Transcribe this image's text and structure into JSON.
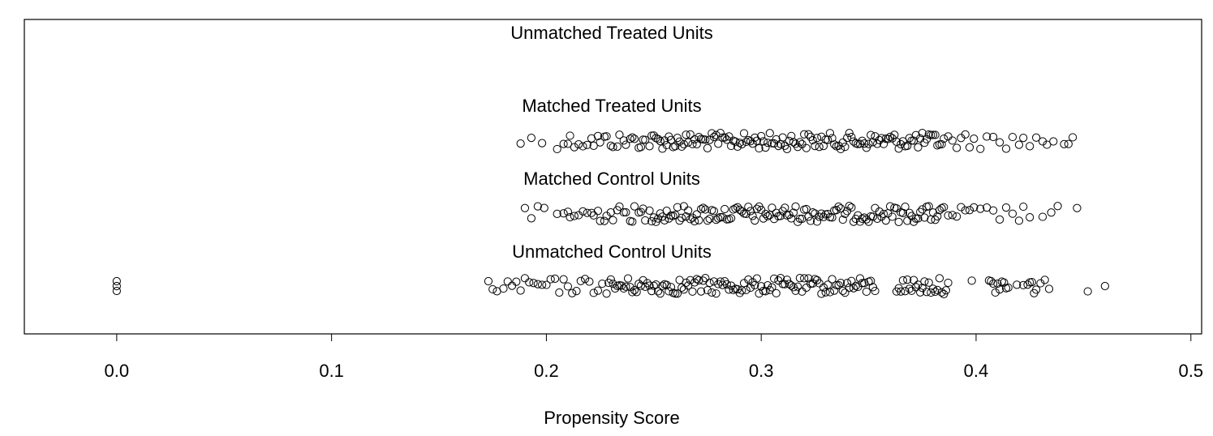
{
  "chart_data": {
    "type": "scatter",
    "title": "",
    "xlabel": "Propensity Score",
    "ylabel": "",
    "xlim": [
      -0.043,
      0.505
    ],
    "x_ticks": [
      0.0,
      0.1,
      0.2,
      0.3,
      0.4,
      0.5
    ],
    "x_tick_labels": [
      "0.0",
      "0.1",
      "0.2",
      "0.3",
      "0.4",
      "0.5"
    ],
    "grid": false,
    "legend": "none",
    "marker": "open-circle",
    "marker_color": "#000000",
    "groups": [
      {
        "name": "Unmatched Treated Units",
        "x": []
      },
      {
        "name": "Matched Treated Units",
        "x": [
          0.188,
          0.193,
          0.198,
          0.205,
          0.208,
          0.21,
          0.211,
          0.213,
          0.215,
          0.217,
          0.219,
          0.221,
          0.222,
          0.224,
          0.225,
          0.227,
          0.228,
          0.23,
          0.231,
          0.233,
          0.234,
          0.236,
          0.237,
          0.239,
          0.24,
          0.241,
          0.243,
          0.244,
          0.245,
          0.246,
          0.248,
          0.249,
          0.25,
          0.251,
          0.252,
          0.253,
          0.254,
          0.255,
          0.256,
          0.257,
          0.258,
          0.259,
          0.26,
          0.261,
          0.262,
          0.263,
          0.264,
          0.265,
          0.266,
          0.267,
          0.268,
          0.269,
          0.27,
          0.271,
          0.272,
          0.273,
          0.274,
          0.275,
          0.276,
          0.277,
          0.278,
          0.279,
          0.28,
          0.281,
          0.282,
          0.283,
          0.284,
          0.285,
          0.286,
          0.287,
          0.288,
          0.289,
          0.29,
          0.291,
          0.292,
          0.293,
          0.294,
          0.295,
          0.296,
          0.297,
          0.298,
          0.299,
          0.3,
          0.301,
          0.302,
          0.303,
          0.304,
          0.305,
          0.306,
          0.307,
          0.308,
          0.309,
          0.31,
          0.311,
          0.312,
          0.313,
          0.314,
          0.315,
          0.316,
          0.317,
          0.318,
          0.319,
          0.32,
          0.321,
          0.322,
          0.323,
          0.324,
          0.325,
          0.326,
          0.327,
          0.328,
          0.329,
          0.33,
          0.331,
          0.332,
          0.333,
          0.334,
          0.335,
          0.336,
          0.337,
          0.338,
          0.339,
          0.34,
          0.341,
          0.342,
          0.343,
          0.344,
          0.345,
          0.346,
          0.347,
          0.348,
          0.349,
          0.35,
          0.351,
          0.352,
          0.353,
          0.354,
          0.355,
          0.356,
          0.357,
          0.358,
          0.359,
          0.36,
          0.361,
          0.362,
          0.363,
          0.364,
          0.365,
          0.366,
          0.367,
          0.368,
          0.369,
          0.37,
          0.371,
          0.372,
          0.373,
          0.374,
          0.375,
          0.376,
          0.377,
          0.378,
          0.379,
          0.38,
          0.381,
          0.382,
          0.383,
          0.384,
          0.385,
          0.387,
          0.389,
          0.391,
          0.393,
          0.395,
          0.397,
          0.399,
          0.402,
          0.405,
          0.408,
          0.411,
          0.414,
          0.417,
          0.42,
          0.422,
          0.425,
          0.428,
          0.431,
          0.433,
          0.436,
          0.441,
          0.443,
          0.445
        ]
      },
      {
        "name": "Matched Control Units",
        "x": [
          0.19,
          0.193,
          0.196,
          0.199,
          0.205,
          0.208,
          0.21,
          0.211,
          0.213,
          0.215,
          0.217,
          0.219,
          0.221,
          0.222,
          0.224,
          0.225,
          0.227,
          0.228,
          0.23,
          0.231,
          0.233,
          0.234,
          0.236,
          0.237,
          0.239,
          0.24,
          0.241,
          0.243,
          0.244,
          0.245,
          0.246,
          0.248,
          0.249,
          0.25,
          0.251,
          0.252,
          0.253,
          0.254,
          0.255,
          0.256,
          0.257,
          0.258,
          0.259,
          0.26,
          0.261,
          0.262,
          0.263,
          0.264,
          0.265,
          0.266,
          0.267,
          0.268,
          0.269,
          0.27,
          0.271,
          0.272,
          0.273,
          0.274,
          0.275,
          0.276,
          0.277,
          0.278,
          0.279,
          0.28,
          0.281,
          0.282,
          0.283,
          0.284,
          0.285,
          0.286,
          0.287,
          0.288,
          0.289,
          0.29,
          0.291,
          0.292,
          0.293,
          0.294,
          0.295,
          0.296,
          0.297,
          0.298,
          0.299,
          0.3,
          0.301,
          0.302,
          0.303,
          0.304,
          0.305,
          0.306,
          0.307,
          0.308,
          0.309,
          0.31,
          0.311,
          0.312,
          0.313,
          0.314,
          0.315,
          0.316,
          0.317,
          0.318,
          0.319,
          0.32,
          0.321,
          0.322,
          0.323,
          0.324,
          0.325,
          0.326,
          0.327,
          0.328,
          0.329,
          0.33,
          0.331,
          0.332,
          0.333,
          0.334,
          0.335,
          0.336,
          0.337,
          0.338,
          0.339,
          0.34,
          0.341,
          0.342,
          0.343,
          0.344,
          0.345,
          0.346,
          0.347,
          0.348,
          0.349,
          0.35,
          0.351,
          0.352,
          0.353,
          0.354,
          0.355,
          0.356,
          0.357,
          0.358,
          0.359,
          0.36,
          0.361,
          0.362,
          0.363,
          0.364,
          0.365,
          0.366,
          0.367,
          0.368,
          0.369,
          0.37,
          0.371,
          0.372,
          0.373,
          0.374,
          0.375,
          0.376,
          0.377,
          0.378,
          0.379,
          0.38,
          0.381,
          0.382,
          0.383,
          0.384,
          0.385,
          0.387,
          0.389,
          0.391,
          0.393,
          0.395,
          0.397,
          0.399,
          0.402,
          0.405,
          0.408,
          0.411,
          0.414,
          0.417,
          0.42,
          0.422,
          0.425,
          0.431,
          0.435,
          0.438,
          0.447
        ]
      },
      {
        "name": "Unmatched Control Units",
        "x": [
          0.0,
          0.0,
          0.0,
          0.173,
          0.175,
          0.177,
          0.18,
          0.182,
          0.184,
          0.186,
          0.188,
          0.19,
          0.192,
          0.194,
          0.196,
          0.198,
          0.2,
          0.202,
          0.204,
          0.206,
          0.208,
          0.21,
          0.212,
          0.214,
          0.216,
          0.218,
          0.22,
          0.222,
          0.224,
          0.226,
          0.228,
          0.229,
          0.23,
          0.231,
          0.232,
          0.233,
          0.234,
          0.235,
          0.236,
          0.237,
          0.238,
          0.239,
          0.24,
          0.241,
          0.242,
          0.243,
          0.244,
          0.245,
          0.246,
          0.247,
          0.248,
          0.249,
          0.25,
          0.251,
          0.252,
          0.253,
          0.254,
          0.255,
          0.256,
          0.257,
          0.258,
          0.259,
          0.26,
          0.261,
          0.262,
          0.263,
          0.264,
          0.265,
          0.266,
          0.267,
          0.268,
          0.269,
          0.27,
          0.271,
          0.272,
          0.273,
          0.274,
          0.275,
          0.276,
          0.277,
          0.278,
          0.279,
          0.28,
          0.281,
          0.282,
          0.283,
          0.284,
          0.285,
          0.286,
          0.287,
          0.288,
          0.289,
          0.29,
          0.291,
          0.292,
          0.293,
          0.294,
          0.295,
          0.296,
          0.297,
          0.298,
          0.299,
          0.3,
          0.301,
          0.302,
          0.303,
          0.304,
          0.305,
          0.306,
          0.307,
          0.308,
          0.309,
          0.31,
          0.311,
          0.312,
          0.313,
          0.314,
          0.315,
          0.316,
          0.317,
          0.318,
          0.319,
          0.32,
          0.321,
          0.322,
          0.323,
          0.324,
          0.325,
          0.326,
          0.327,
          0.328,
          0.329,
          0.33,
          0.331,
          0.332,
          0.333,
          0.334,
          0.335,
          0.336,
          0.337,
          0.338,
          0.339,
          0.34,
          0.341,
          0.342,
          0.343,
          0.344,
          0.345,
          0.346,
          0.347,
          0.348,
          0.349,
          0.35,
          0.351,
          0.352,
          0.353,
          0.363,
          0.364,
          0.365,
          0.366,
          0.367,
          0.368,
          0.369,
          0.37,
          0.371,
          0.372,
          0.373,
          0.374,
          0.375,
          0.376,
          0.377,
          0.378,
          0.379,
          0.38,
          0.381,
          0.382,
          0.383,
          0.384,
          0.385,
          0.386,
          0.387,
          0.398,
          0.406,
          0.407,
          0.408,
          0.409,
          0.41,
          0.411,
          0.412,
          0.413,
          0.414,
          0.415,
          0.419,
          0.422,
          0.424,
          0.425,
          0.426,
          0.427,
          0.428,
          0.43,
          0.432,
          0.434,
          0.452,
          0.46
        ]
      }
    ]
  }
}
